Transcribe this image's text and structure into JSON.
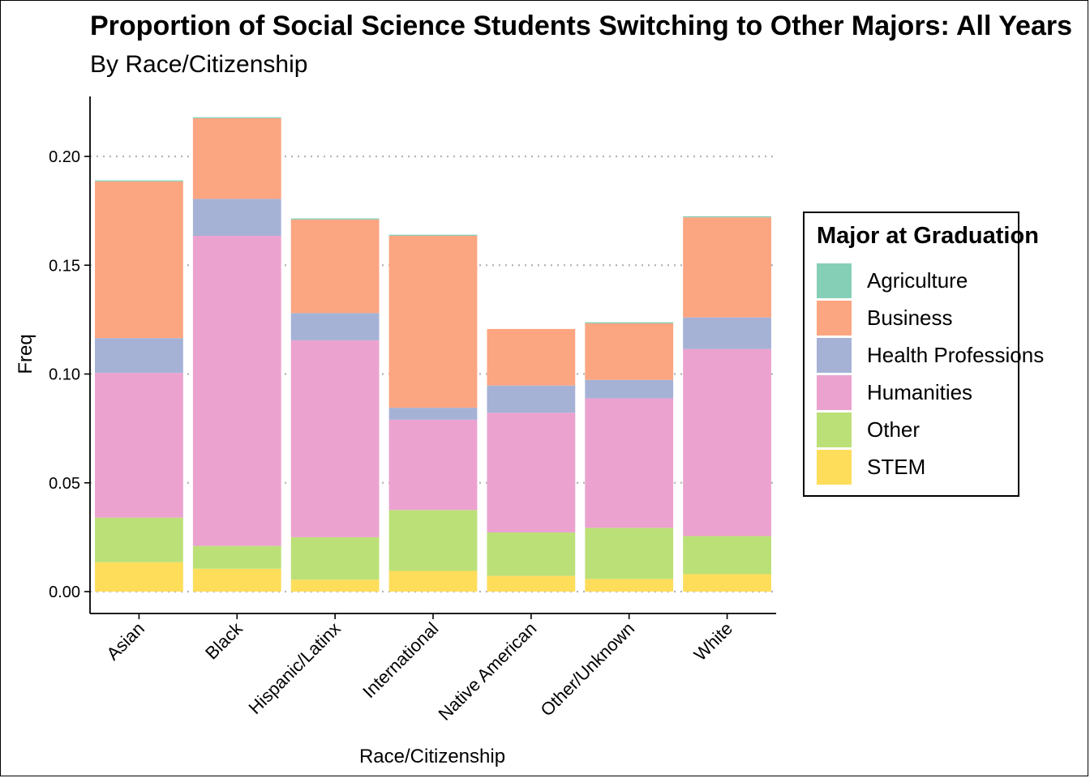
{
  "chart_data": {
    "type": "bar",
    "stacked": true,
    "title": "Proportion of Social Science Students Switching to Other Majors: All Years",
    "subtitle": "By Race/Citizenship",
    "xlabel": "Race/Citizenship",
    "ylabel": "Freq",
    "ylim": [
      0,
      0.22
    ],
    "yticks": [
      "0.00",
      "0.05",
      "0.10",
      "0.15",
      "0.20"
    ],
    "grid": "horizontal dotted",
    "legend_position": "right",
    "legend_title": "Major at Graduation",
    "categories": [
      "Asian",
      "Black",
      "Hispanic/Latinx",
      "International",
      "Native American",
      "Other/Unknown",
      "White"
    ],
    "series": [
      {
        "name": "Agriculture",
        "color": "#86cfb7",
        "values": [
          0.0005,
          0.0005,
          0.0005,
          0.0005,
          0.0,
          0.0005,
          0.0005
        ]
      },
      {
        "name": "Business",
        "color": "#fca581",
        "values": [
          0.072,
          0.037,
          0.043,
          0.079,
          0.026,
          0.026,
          0.046
        ]
      },
      {
        "name": "Health Professions",
        "color": "#a5b2d6",
        "values": [
          0.016,
          0.017,
          0.0125,
          0.0055,
          0.0125,
          0.0085,
          0.0145
        ]
      },
      {
        "name": "Humanities",
        "color": "#eba2cf",
        "values": [
          0.0665,
          0.1425,
          0.0905,
          0.0415,
          0.055,
          0.0595,
          0.086
        ]
      },
      {
        "name": "Other",
        "color": "#bce078",
        "values": [
          0.0205,
          0.0105,
          0.0195,
          0.028,
          0.02,
          0.0235,
          0.0175
        ]
      },
      {
        "name": "STEM",
        "color": "#fedd5b",
        "values": [
          0.0135,
          0.0105,
          0.0055,
          0.0095,
          0.0072,
          0.0058,
          0.008
        ]
      }
    ]
  }
}
